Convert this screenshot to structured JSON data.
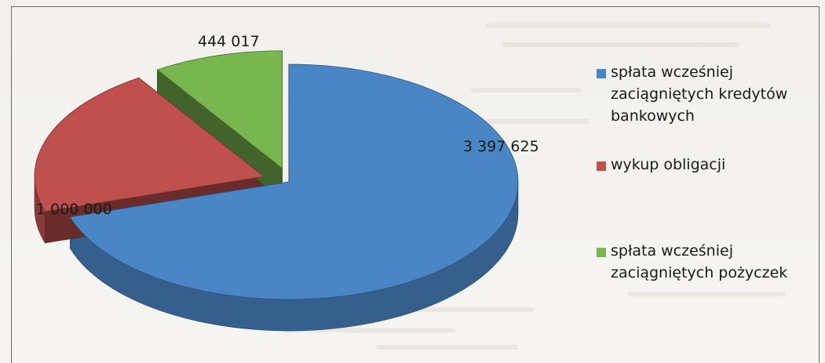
{
  "chart_data": {
    "type": "pie",
    "categories": [
      "spłata wcześniej zaciągniętych kredytów bankowych",
      "wykup obligacji",
      "spłata wcześniej zaciągniętych pożyczek"
    ],
    "values": [
      3397625,
      1000000,
      444017
    ],
    "data_labels": [
      "3 397 625",
      "1 000 000",
      "444 017"
    ],
    "colors": [
      "#4a86c5",
      "#c0504d",
      "#78b650"
    ],
    "exploded": true,
    "three_d": true,
    "legend_position": "right",
    "title": "",
    "xlabel": "",
    "ylabel": ""
  }
}
